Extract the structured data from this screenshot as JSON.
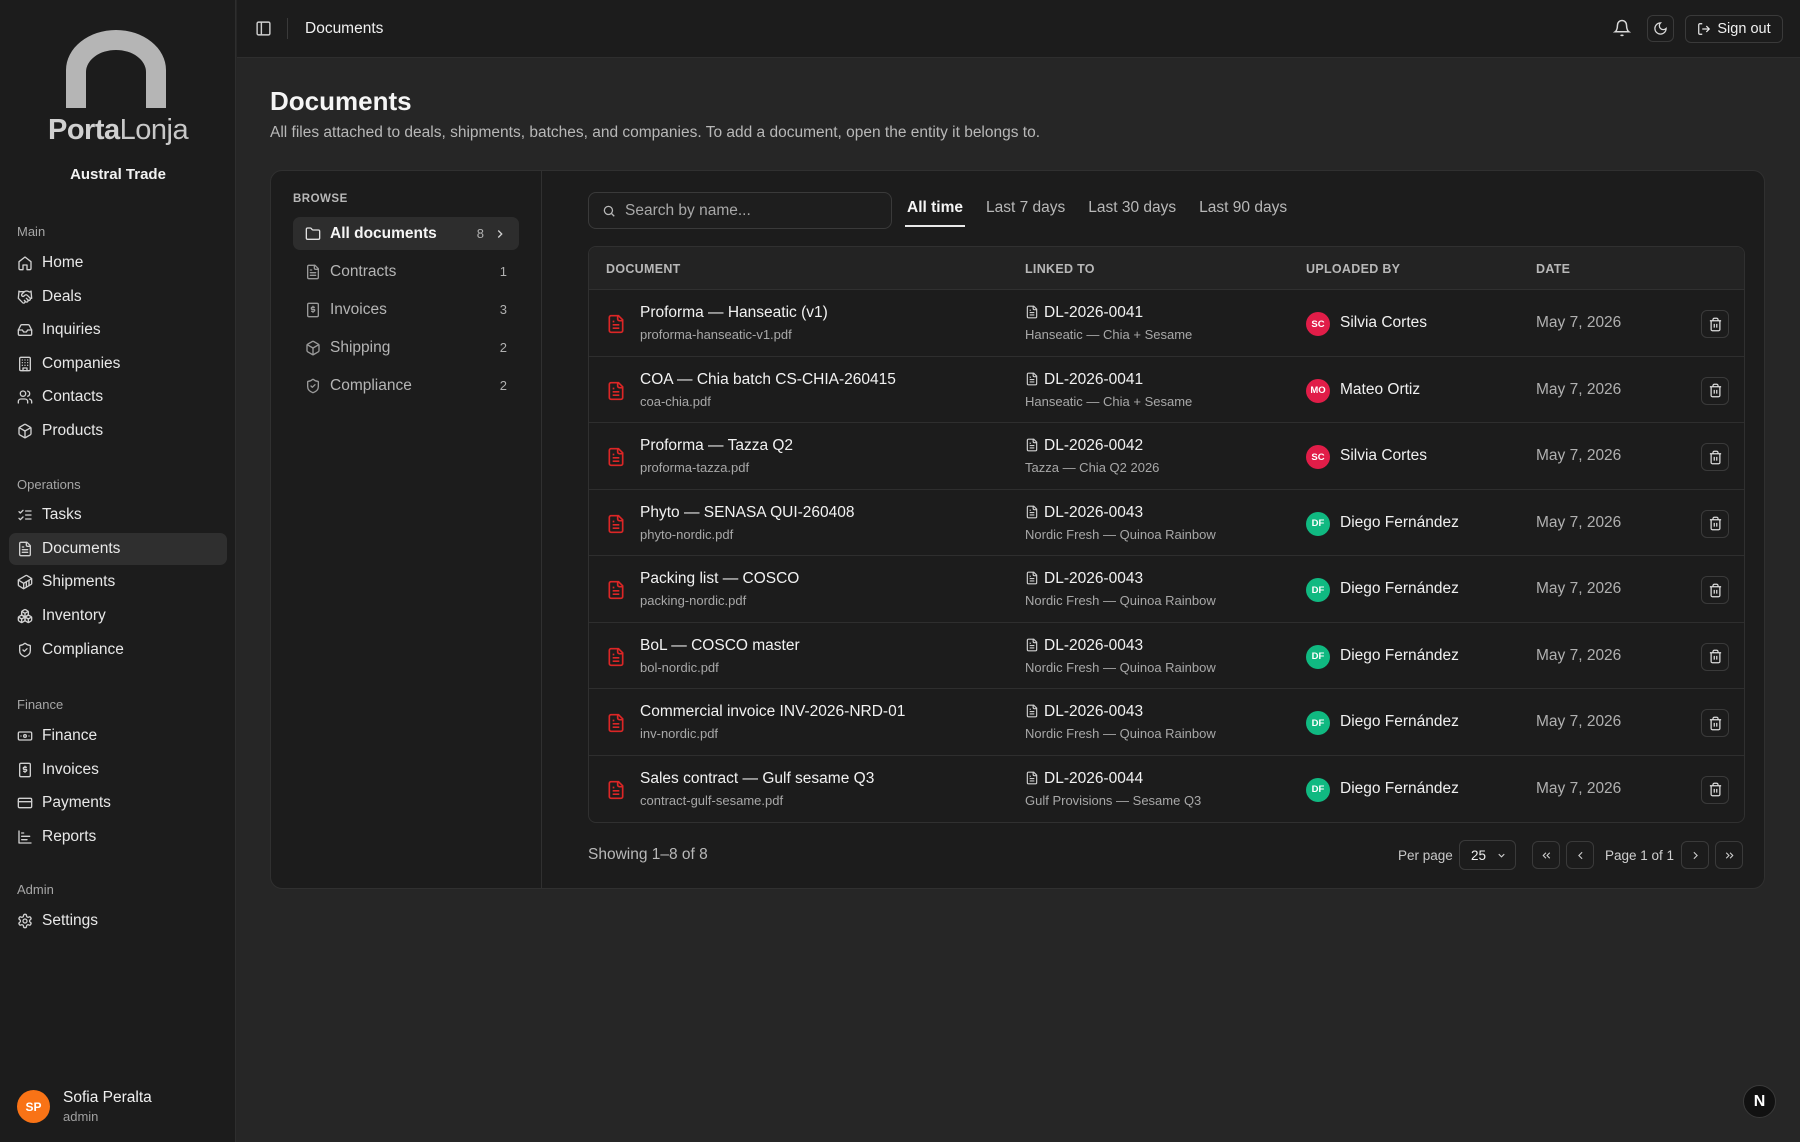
{
  "brand": {
    "logo_part1": "Porta",
    "logo_part2": "Lonja",
    "company": "Austral Trade"
  },
  "nav": [
    {
      "section": "Main",
      "items": [
        {
          "label": "Home",
          "icon": "home-icon"
        },
        {
          "label": "Deals",
          "icon": "handshake-icon"
        },
        {
          "label": "Inquiries",
          "icon": "inbox-icon"
        },
        {
          "label": "Companies",
          "icon": "building-icon"
        },
        {
          "label": "Contacts",
          "icon": "users-icon"
        },
        {
          "label": "Products",
          "icon": "package-icon"
        }
      ]
    },
    {
      "section": "Operations",
      "items": [
        {
          "label": "Tasks",
          "icon": "list-checks-icon"
        },
        {
          "label": "Documents",
          "icon": "file-text-icon",
          "active": true
        },
        {
          "label": "Shipments",
          "icon": "container-icon"
        },
        {
          "label": "Inventory",
          "icon": "boxes-icon"
        },
        {
          "label": "Compliance",
          "icon": "shield-check-icon"
        }
      ]
    },
    {
      "section": "Finance",
      "items": [
        {
          "label": "Finance",
          "icon": "banknote-icon"
        },
        {
          "label": "Invoices",
          "icon": "receipt-icon"
        },
        {
          "label": "Payments",
          "icon": "credit-card-icon"
        },
        {
          "label": "Reports",
          "icon": "bar-chart-icon"
        }
      ]
    },
    {
      "section": "Admin",
      "items": [
        {
          "label": "Settings",
          "icon": "gear-icon"
        }
      ]
    }
  ],
  "user": {
    "initials": "SP",
    "name": "Sofia Peralta",
    "role": "admin"
  },
  "topbar": {
    "title": "Documents",
    "signout": "Sign out"
  },
  "page": {
    "title": "Documents",
    "subtitle": "All files attached to deals, shipments, batches, and companies. To add a document, open the entity it belongs to."
  },
  "browse": {
    "label": "BROWSE",
    "categories": [
      {
        "label": "All documents",
        "count": "8",
        "icon": "folder-icon",
        "active": true
      },
      {
        "label": "Contracts",
        "count": "1",
        "icon": "file-text-icon"
      },
      {
        "label": "Invoices",
        "count": "3",
        "icon": "receipt-icon"
      },
      {
        "label": "Shipping",
        "count": "2",
        "icon": "package-icon"
      },
      {
        "label": "Compliance",
        "count": "2",
        "icon": "shield-check-icon"
      }
    ]
  },
  "search": {
    "placeholder": "Search by name..."
  },
  "tabs": [
    {
      "label": "All time",
      "active": true
    },
    {
      "label": "Last 7 days"
    },
    {
      "label": "Last 30 days"
    },
    {
      "label": "Last 90 days"
    }
  ],
  "table": {
    "headers": {
      "document": "DOCUMENT",
      "linked": "LINKED TO",
      "uploaded": "UPLOADED BY",
      "date": "DATE"
    },
    "rows": [
      {
        "name": "Proforma — Hanseatic (v1)",
        "file": "proforma-hanseatic-v1.pdf",
        "link_id": "DL-2026-0041",
        "link_desc": "Hanseatic — Chia + Sesame",
        "initials": "SC",
        "avatar_color": "#e11d48",
        "uploader": "Silvia Cortes",
        "date": "May 7, 2026"
      },
      {
        "name": "COA — Chia batch CS-CHIA-260415",
        "file": "coa-chia.pdf",
        "link_id": "DL-2026-0041",
        "link_desc": "Hanseatic — Chia + Sesame",
        "initials": "MO",
        "avatar_color": "#e11d48",
        "uploader": "Mateo Ortiz",
        "date": "May 7, 2026"
      },
      {
        "name": "Proforma — Tazza Q2",
        "file": "proforma-tazza.pdf",
        "link_id": "DL-2026-0042",
        "link_desc": "Tazza — Chia Q2 2026",
        "initials": "SC",
        "avatar_color": "#e11d48",
        "uploader": "Silvia Cortes",
        "date": "May 7, 2026"
      },
      {
        "name": "Phyto — SENASA QUI-260408",
        "file": "phyto-nordic.pdf",
        "link_id": "DL-2026-0043",
        "link_desc": "Nordic Fresh — Quinoa Rainbow",
        "initials": "DF",
        "avatar_color": "#10b981",
        "uploader": "Diego Fernández",
        "date": "May 7, 2026"
      },
      {
        "name": "Packing list — COSCO",
        "file": "packing-nordic.pdf",
        "link_id": "DL-2026-0043",
        "link_desc": "Nordic Fresh — Quinoa Rainbow",
        "initials": "DF",
        "avatar_color": "#10b981",
        "uploader": "Diego Fernández",
        "date": "May 7, 2026"
      },
      {
        "name": "BoL — COSCO master",
        "file": "bol-nordic.pdf",
        "link_id": "DL-2026-0043",
        "link_desc": "Nordic Fresh — Quinoa Rainbow",
        "initials": "DF",
        "avatar_color": "#10b981",
        "uploader": "Diego Fernández",
        "date": "May 7, 2026"
      },
      {
        "name": "Commercial invoice INV-2026-NRD-01",
        "file": "inv-nordic.pdf",
        "link_id": "DL-2026-0043",
        "link_desc": "Nordic Fresh — Quinoa Rainbow",
        "initials": "DF",
        "avatar_color": "#10b981",
        "uploader": "Diego Fernández",
        "date": "May 7, 2026"
      },
      {
        "name": "Sales contract — Gulf sesame Q3",
        "file": "contract-gulf-sesame.pdf",
        "link_id": "DL-2026-0044",
        "link_desc": "Gulf Provisions — Sesame Q3",
        "initials": "DF",
        "avatar_color": "#10b981",
        "uploader": "Diego Fernández",
        "date": "May 7, 2026"
      }
    ]
  },
  "pagination": {
    "showing": "Showing 1–8 of 8",
    "per_page_label": "Per page",
    "per_page": "25",
    "page_info": "Page 1 of 1"
  },
  "badge": "N"
}
